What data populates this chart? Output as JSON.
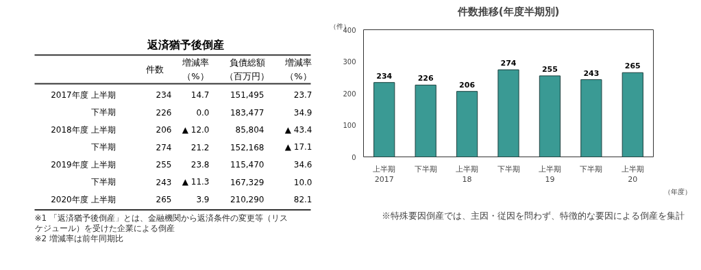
{
  "chart_data": [
    {
      "type": "other",
      "title": "返済猶予後倒産",
      "categories": [
        "件数",
        "増減率（%）",
        "負債総額（百万円）",
        "増減率（%）"
      ],
      "y_categories": [
        "2017年度 上半期",
        "下半期",
        "2018年度 上半期",
        "下半期",
        "2019年度 上半期",
        "下半期",
        "2020年度 上半期"
      ],
      "cell_labels": [
        [
          "234",
          "14.7",
          "151,495",
          "23.7"
        ],
        [
          "226",
          "0.0",
          "183,477",
          "34.9"
        ],
        [
          "206",
          "▲ 12.0",
          "85,804",
          "▲ 43.4"
        ],
        [
          "274",
          "21.2",
          "152,168",
          "▲ 17.1"
        ],
        [
          "255",
          "23.8",
          "115,470",
          "34.6"
        ],
        [
          "243",
          "▲ 11.3",
          "167,329",
          "10.0"
        ],
        [
          "265",
          "3.9",
          "210,290",
          "82.1"
        ]
      ],
      "annotations": [
        "※1 「返済猶予後倒産」とは、金融機関から返済条件の変更等（リスケジュール）を受けた企業による倒産",
        "※2 増減率は前年同期比"
      ]
    },
    {
      "type": "bar",
      "title": "件数推移(年度半期別)",
      "ylabel": "（件）",
      "xlabel": "（年度）",
      "categories": [
        "上半期\n2017",
        "下半期",
        "上半期\n18",
        "下半期",
        "上半期\n19",
        "下半期",
        "上半期\n20"
      ],
      "values": [
        234,
        226,
        206,
        274,
        255,
        243,
        265
      ],
      "color": "#3a9a94",
      "ylim": [
        0,
        400
      ],
      "yticks": [
        0,
        100,
        200,
        300,
        400
      ],
      "grid": false,
      "data_labels": true,
      "annotations": [
        "※特殊要因倒産では、主因・従因を問わず、特徴的な要因による倒産を集計"
      ]
    }
  ]
}
